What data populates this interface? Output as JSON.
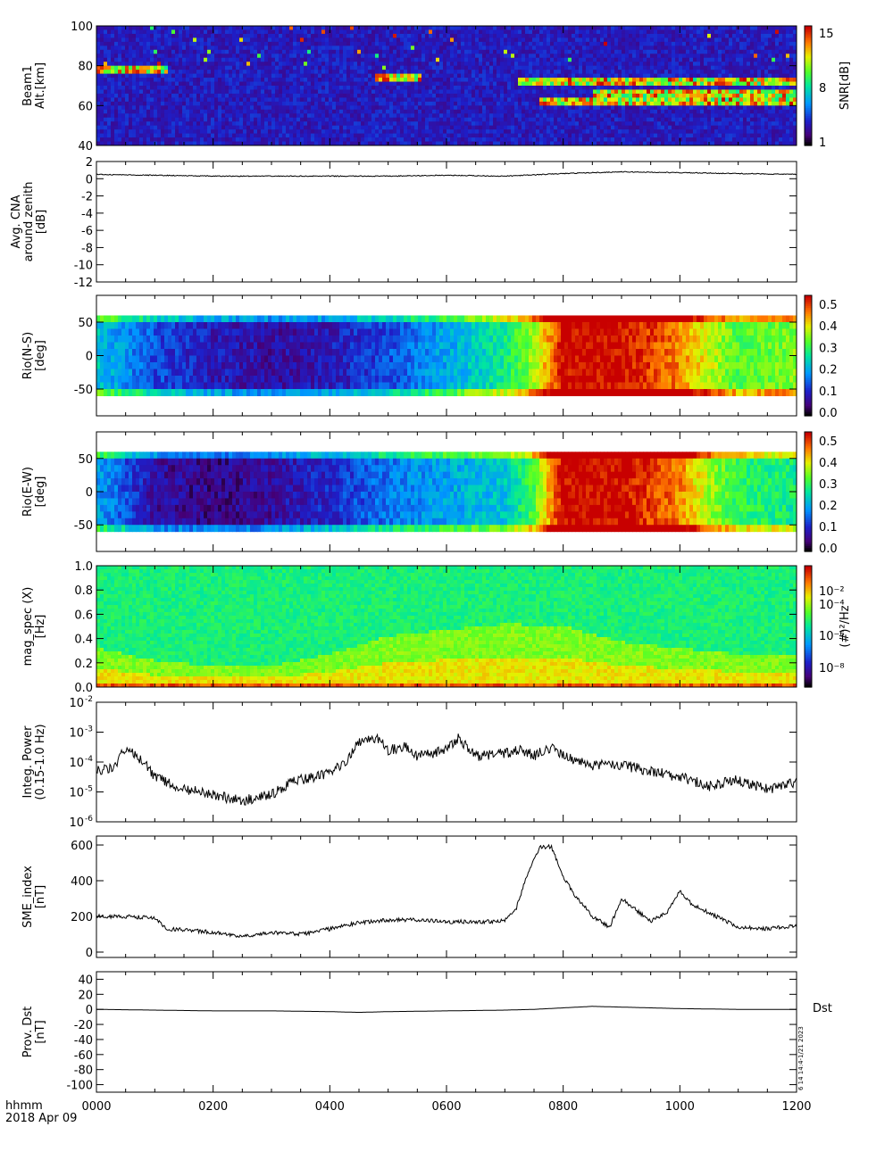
{
  "footer": {
    "time_label": "hhmm",
    "date_label": "2018 Apr 09"
  },
  "stamp": "6 14 14:4-1/21 2023",
  "x_axis": {
    "tick_labels": [
      "0000",
      "0200",
      "0400",
      "0600",
      "0800",
      "1000",
      "1200"
    ],
    "tick_hours": [
      0,
      2,
      4,
      6,
      8,
      10,
      12
    ],
    "range_hours": [
      0,
      12
    ]
  },
  "colors": {
    "spectral_lo": "#000000",
    "spectral_mid": "#00ff00",
    "spectral_hi": "#cc0000",
    "line": "#000000"
  },
  "chart_data": [
    {
      "id": "beam1",
      "type": "heatmap",
      "ylabel_lines": [
        "Beam1",
        "Alt.[km]"
      ],
      "ylim": [
        40,
        100
      ],
      "yticks": [
        40,
        60,
        80,
        100
      ],
      "colorbar": {
        "label": "SNR[dB]",
        "ticks": [
          "1",
          "8",
          "15"
        ]
      },
      "enhancement_layers": [
        {
          "start_hour": 0.0,
          "end_hour": 1.2,
          "alt_km": 78
        },
        {
          "start_hour": 4.8,
          "end_hour": 5.6,
          "alt_km": 74
        },
        {
          "start_hour": 7.2,
          "end_hour": 12.0,
          "alt_km": 72
        },
        {
          "start_hour": 8.5,
          "end_hour": 12.0,
          "alt_km": 66
        },
        {
          "start_hour": 7.6,
          "end_hour": 12.0,
          "alt_km": 62
        }
      ]
    },
    {
      "id": "cna",
      "type": "line",
      "ylabel_lines": [
        "Avg. CNA",
        "around zenith",
        "[dB]"
      ],
      "ylim": [
        -12,
        2
      ],
      "yticks": [
        -12,
        -10,
        -8,
        -6,
        -4,
        -2,
        0,
        2
      ],
      "x": [
        0,
        1,
        2,
        3,
        4,
        5,
        6,
        7,
        8,
        9,
        10,
        11,
        12
      ],
      "y": [
        0.5,
        0.4,
        0.3,
        0.3,
        0.3,
        0.3,
        0.4,
        0.3,
        0.6,
        0.8,
        0.7,
        0.6,
        0.5
      ]
    },
    {
      "id": "rio_ns",
      "type": "heatmap",
      "ylabel_lines": [
        "Rio(N-S)",
        "[deg]"
      ],
      "ylim": [
        -90,
        90
      ],
      "yticks": [
        -50,
        0,
        50
      ],
      "colorbar": {
        "label": "",
        "ticks": [
          "0.0",
          "0.1",
          "0.2",
          "0.3",
          "0.4",
          "0.5"
        ]
      },
      "absorption_profile": {
        "x": [
          0,
          1,
          2,
          3,
          4,
          5,
          6,
          7,
          7.5,
          7.8,
          8,
          9,
          10,
          10.5,
          11,
          12
        ],
        "value": [
          0.25,
          0.15,
          0.1,
          0.08,
          0.1,
          0.15,
          0.22,
          0.3,
          0.4,
          0.5,
          0.58,
          0.58,
          0.5,
          0.42,
          0.35,
          0.38
        ]
      }
    },
    {
      "id": "rio_ew",
      "type": "heatmap",
      "ylabel_lines": [
        "Rio(E-W)",
        "[deg]"
      ],
      "ylim": [
        -90,
        90
      ],
      "yticks": [
        -50,
        0,
        50
      ],
      "colorbar": {
        "label": "",
        "ticks": [
          "0.0",
          "0.1",
          "0.2",
          "0.3",
          "0.4",
          "0.5"
        ]
      },
      "absorption_profile": {
        "x": [
          0,
          1,
          2,
          3,
          4,
          5,
          6,
          7,
          7.5,
          7.8,
          8,
          9,
          10,
          10.5,
          11,
          12
        ],
        "value": [
          0.22,
          0.08,
          0.06,
          0.08,
          0.12,
          0.18,
          0.22,
          0.25,
          0.35,
          0.5,
          0.58,
          0.58,
          0.5,
          0.4,
          0.33,
          0.3
        ]
      }
    },
    {
      "id": "mag_spec",
      "type": "heatmap",
      "ylabel_lines": [
        "mag_spec (X)",
        "[Hz]"
      ],
      "ylim": [
        0,
        1.0
      ],
      "yticks": [
        0.0,
        0.2,
        0.4,
        0.6,
        0.8,
        1.0
      ],
      "colorbar": {
        "label": "(#)²/Hz",
        "ticks": [
          "10⁻⁸",
          "10⁻⁶",
          "10⁻⁴",
          "10⁻²"
        ]
      }
    },
    {
      "id": "integ_power",
      "type": "line",
      "log_y": true,
      "ylabel_lines": [
        "Integ. Power",
        "(0.15-1.0 Hz)"
      ],
      "ylim_exp": [
        -6,
        -2
      ],
      "ytick_exps": [
        -6,
        -5,
        -4,
        -3,
        -2
      ],
      "x": [
        0,
        0.3,
        0.5,
        0.8,
        1,
        1.5,
        2,
        2.5,
        3,
        3.3,
        3.5,
        4,
        4.3,
        4.5,
        4.8,
        5,
        5.3,
        5.5,
        6,
        6.2,
        6.5,
        7,
        7.3,
        7.5,
        7.8,
        8,
        8.3,
        8.5,
        9,
        9.5,
        10,
        10.5,
        11,
        11.5,
        12
      ],
      "y_exp": [
        -4.3,
        -4.2,
        -3.5,
        -4.0,
        -4.5,
        -4.9,
        -5.1,
        -5.3,
        -5.1,
        -4.7,
        -4.6,
        -4.4,
        -3.9,
        -3.3,
        -3.2,
        -3.6,
        -3.5,
        -3.8,
        -3.6,
        -3.2,
        -3.8,
        -3.7,
        -3.6,
        -3.8,
        -3.5,
        -3.8,
        -4.0,
        -4.1,
        -4.1,
        -4.3,
        -4.5,
        -4.8,
        -4.6,
        -4.9,
        -4.7
      ]
    },
    {
      "id": "sme",
      "type": "line",
      "ylabel_lines": [
        "SME_index",
        "[nT]"
      ],
      "ylim": [
        -30,
        650
      ],
      "yticks": [
        0,
        200,
        400,
        600
      ],
      "x": [
        0,
        0.5,
        1,
        1.2,
        1.5,
        2,
        2.5,
        3,
        3.5,
        4,
        4.5,
        5,
        5.5,
        6,
        6.5,
        7,
        7.2,
        7.4,
        7.6,
        7.8,
        8,
        8.2,
        8.5,
        8.8,
        9,
        9.2,
        9.5,
        9.8,
        10,
        10.2,
        10.5,
        11,
        11.5,
        12
      ],
      "y": [
        200,
        200,
        190,
        130,
        125,
        110,
        90,
        110,
        100,
        130,
        165,
        180,
        180,
        170,
        170,
        175,
        250,
        450,
        590,
        590,
        420,
        320,
        200,
        140,
        300,
        250,
        170,
        230,
        340,
        270,
        220,
        140,
        130,
        150
      ]
    },
    {
      "id": "dst",
      "type": "line",
      "ylabel_lines": [
        "Prov. Dst",
        "[nT]"
      ],
      "ylim": [
        -110,
        50
      ],
      "yticks": [
        -100,
        -80,
        -60,
        -40,
        -20,
        0,
        20,
        40
      ],
      "legend": "Dst",
      "x": [
        0,
        1,
        2,
        3,
        4,
        4.5,
        5,
        6,
        7,
        7.5,
        8,
        8.5,
        9,
        10,
        11,
        12
      ],
      "y": [
        0,
        -1,
        -2,
        -2,
        -3,
        -4,
        -3,
        -2,
        -1,
        0,
        2,
        4,
        3,
        1,
        0,
        0
      ]
    }
  ]
}
